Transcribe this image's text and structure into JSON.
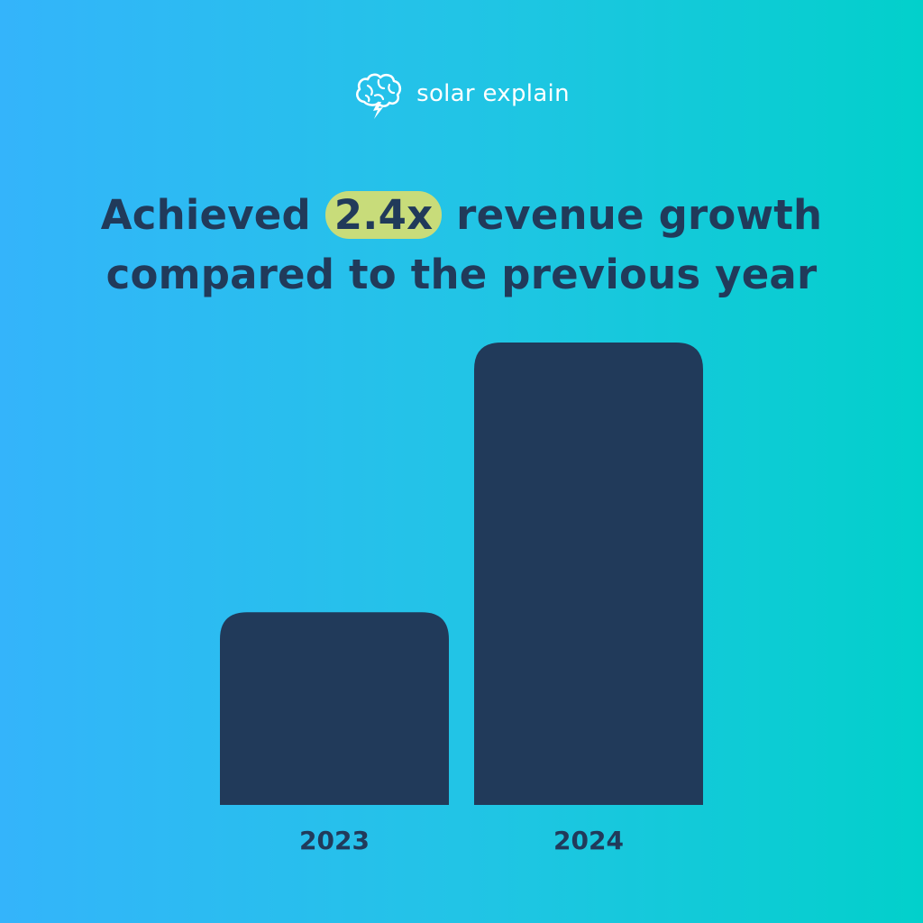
{
  "brand": {
    "name": "solar explain",
    "icon": "brain-lightning-icon"
  },
  "headline": {
    "prefix": "Achieved ",
    "highlight": "2.4x",
    "suffix": " revenue growth",
    "line2": "compared to the previous year"
  },
  "colors": {
    "background_start": "#34b4fb",
    "background_end": "#02d0cb",
    "bar": "#213a5a",
    "highlight": "#c8dc7a",
    "text_dark": "#213a5a",
    "text_light": "#ffffff"
  },
  "chart_data": {
    "type": "bar",
    "title": "Achieved 2.4x revenue growth compared to the previous year",
    "categories": [
      "2023",
      "2024"
    ],
    "values": [
      1,
      2.4
    ],
    "ylim": [
      0,
      2.4
    ],
    "xlabel": "",
    "ylabel": "",
    "grid": false,
    "axes_visible": false
  }
}
